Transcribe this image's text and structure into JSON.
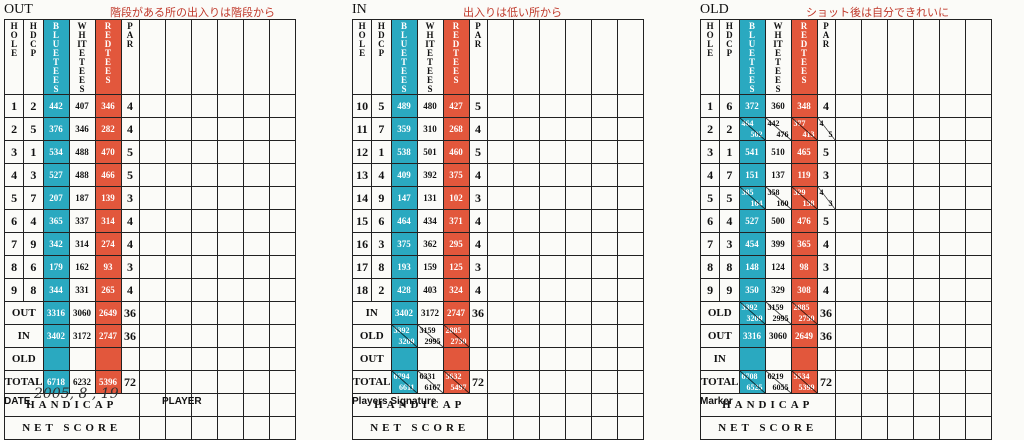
{
  "cards": [
    {
      "title": "OUT",
      "note": "階段がある所の出入りは階段から",
      "headers": [
        "HOLE",
        "HDCP",
        "BLUE TEES",
        "WHITE TEES",
        "RED TEES",
        "PAR"
      ],
      "rows": [
        [
          "1",
          "2",
          "442",
          "407",
          "346",
          "4"
        ],
        [
          "2",
          "5",
          "376",
          "346",
          "282",
          "4"
        ],
        [
          "3",
          "1",
          "534",
          "488",
          "470",
          "5"
        ],
        [
          "4",
          "3",
          "527",
          "488",
          "466",
          "5"
        ],
        [
          "5",
          "7",
          "207",
          "187",
          "139",
          "3"
        ],
        [
          "6",
          "4",
          "365",
          "337",
          "314",
          "4"
        ],
        [
          "7",
          "9",
          "342",
          "314",
          "274",
          "4"
        ],
        [
          "8",
          "6",
          "179",
          "162",
          "93",
          "3"
        ],
        [
          "9",
          "8",
          "344",
          "331",
          "265",
          "4"
        ]
      ],
      "totals": [
        {
          "label": "OUT",
          "blue": "3316",
          "white": "3060",
          "red": "2649",
          "par": "36"
        },
        {
          "label": "IN",
          "blue": "3402",
          "white": "3172",
          "red": "2747",
          "par": "36"
        },
        {
          "label": "OLD",
          "blue": "",
          "white": "",
          "red": "",
          "par": ""
        },
        {
          "label": "TOTAL",
          "blue": "6718",
          "white": "6232",
          "red": "5396",
          "par": "72"
        }
      ],
      "handicap": "HANDICAP",
      "net_score": "NET SCORE",
      "footer": "DATE",
      "footer2": "PLAYER",
      "date_hand": "2005, 8 , 19"
    },
    {
      "title": "IN",
      "note": "出入りは低い所から",
      "headers": [
        "HOLE",
        "HDCP",
        "BLUE TEES",
        "WHITE TEES",
        "RED TEES",
        "PAR"
      ],
      "rows": [
        [
          "10",
          "5",
          "489",
          "480",
          "427",
          "5"
        ],
        [
          "11",
          "7",
          "359",
          "310",
          "268",
          "4"
        ],
        [
          "12",
          "1",
          "538",
          "501",
          "460",
          "5"
        ],
        [
          "13",
          "4",
          "409",
          "392",
          "375",
          "4"
        ],
        [
          "14",
          "9",
          "147",
          "131",
          "102",
          "3"
        ],
        [
          "15",
          "6",
          "464",
          "434",
          "371",
          "4"
        ],
        [
          "16",
          "3",
          "375",
          "362",
          "295",
          "4"
        ],
        [
          "17",
          "8",
          "193",
          "159",
          "125",
          "3"
        ],
        [
          "18",
          "2",
          "428",
          "403",
          "324",
          "4"
        ]
      ],
      "totals": [
        {
          "label": "IN",
          "blue": "3402",
          "white": "3172",
          "red": "2747",
          "par": "36"
        },
        {
          "label": "OLD",
          "blue": "3392/3209",
          "white": "3159/2995",
          "red": "2885/2750",
          "par": ""
        },
        {
          "label": "OUT",
          "blue": "",
          "white": "",
          "red": "",
          "par": ""
        },
        {
          "label": "TOTAL",
          "blue": "6794/6611",
          "white": "6331/6167",
          "red": "5632/5497",
          "par": "72"
        }
      ],
      "handicap": "HANDICAP",
      "net_score": "NET SCORE",
      "footer": "Players Signature"
    },
    {
      "title": "OLD",
      "note": "ショット後は自分できれいに",
      "headers": [
        "HOLE",
        "HDCP",
        "BLUE TEES",
        "WHITE TEES",
        "RED TEES",
        "PAR"
      ],
      "rows": [
        [
          "1",
          "6",
          "372",
          "360",
          "348",
          "4"
        ],
        [
          "2",
          "2",
          "464/502",
          "442/476",
          "377/413",
          "4/5"
        ],
        [
          "3",
          "1",
          "541",
          "510",
          "465",
          "5"
        ],
        [
          "4",
          "7",
          "151",
          "137",
          "119",
          "3"
        ],
        [
          "5",
          "5",
          "385/164",
          "358/160",
          "329/158",
          "4/3"
        ],
        [
          "6",
          "4",
          "527",
          "500",
          "476",
          "5"
        ],
        [
          "7",
          "3",
          "454",
          "399",
          "365",
          "4"
        ],
        [
          "8",
          "8",
          "148",
          "124",
          "98",
          "3"
        ],
        [
          "9",
          "9",
          "350",
          "329",
          "308",
          "4"
        ]
      ],
      "totals": [
        {
          "label": "OLD",
          "blue": "3392/3209",
          "white": "3159/2995",
          "red": "2885/2750",
          "par": "36"
        },
        {
          "label": "OUT",
          "blue": "3316",
          "white": "3060",
          "red": "2649",
          "par": "36"
        },
        {
          "label": "IN",
          "blue": "",
          "white": "",
          "red": "",
          "par": ""
        },
        {
          "label": "TOTAL",
          "blue": "6708/6525",
          "white": "6219/6055",
          "red": "5534/5399",
          "par": "72"
        }
      ],
      "handicap": "HANDICAP",
      "net_score": "NET SCORE",
      "footer": "Marker"
    }
  ],
  "colors": {
    "blue_tee": "#2aa9c0",
    "red_tee": "#e2573c",
    "note_text": "#c0392b"
  }
}
